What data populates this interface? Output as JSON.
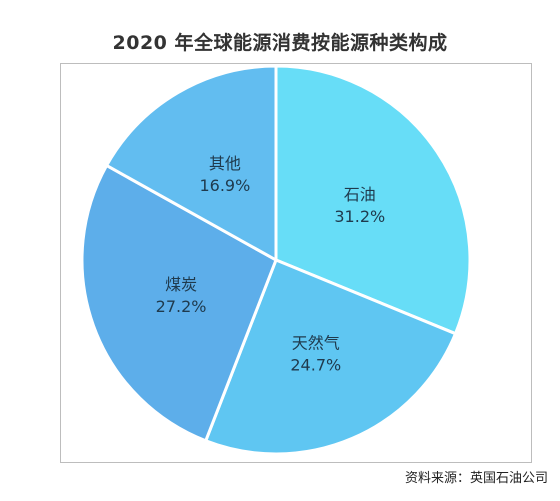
{
  "chart_data": {
    "type": "pie",
    "title": "2020 年全球能源消费按能源种类构成",
    "slices": [
      {
        "name": "石油",
        "value": 31.2,
        "label": "31.2%",
        "color": "#67DDF7"
      },
      {
        "name": "天然气",
        "value": 24.7,
        "label": "24.7%",
        "color": "#5FC6F2"
      },
      {
        "name": "煤炭",
        "value": 27.2,
        "label": "27.2%",
        "color": "#5DAEEA"
      },
      {
        "name": "其他",
        "value": 16.9,
        "label": "16.9%",
        "color": "#62BDF0"
      }
    ],
    "start": "12 o'clock",
    "direction": "clockwise",
    "legend": "none",
    "separator_color": "#ffffff"
  },
  "footer": {
    "source": "资料来源：英国石油公司"
  }
}
